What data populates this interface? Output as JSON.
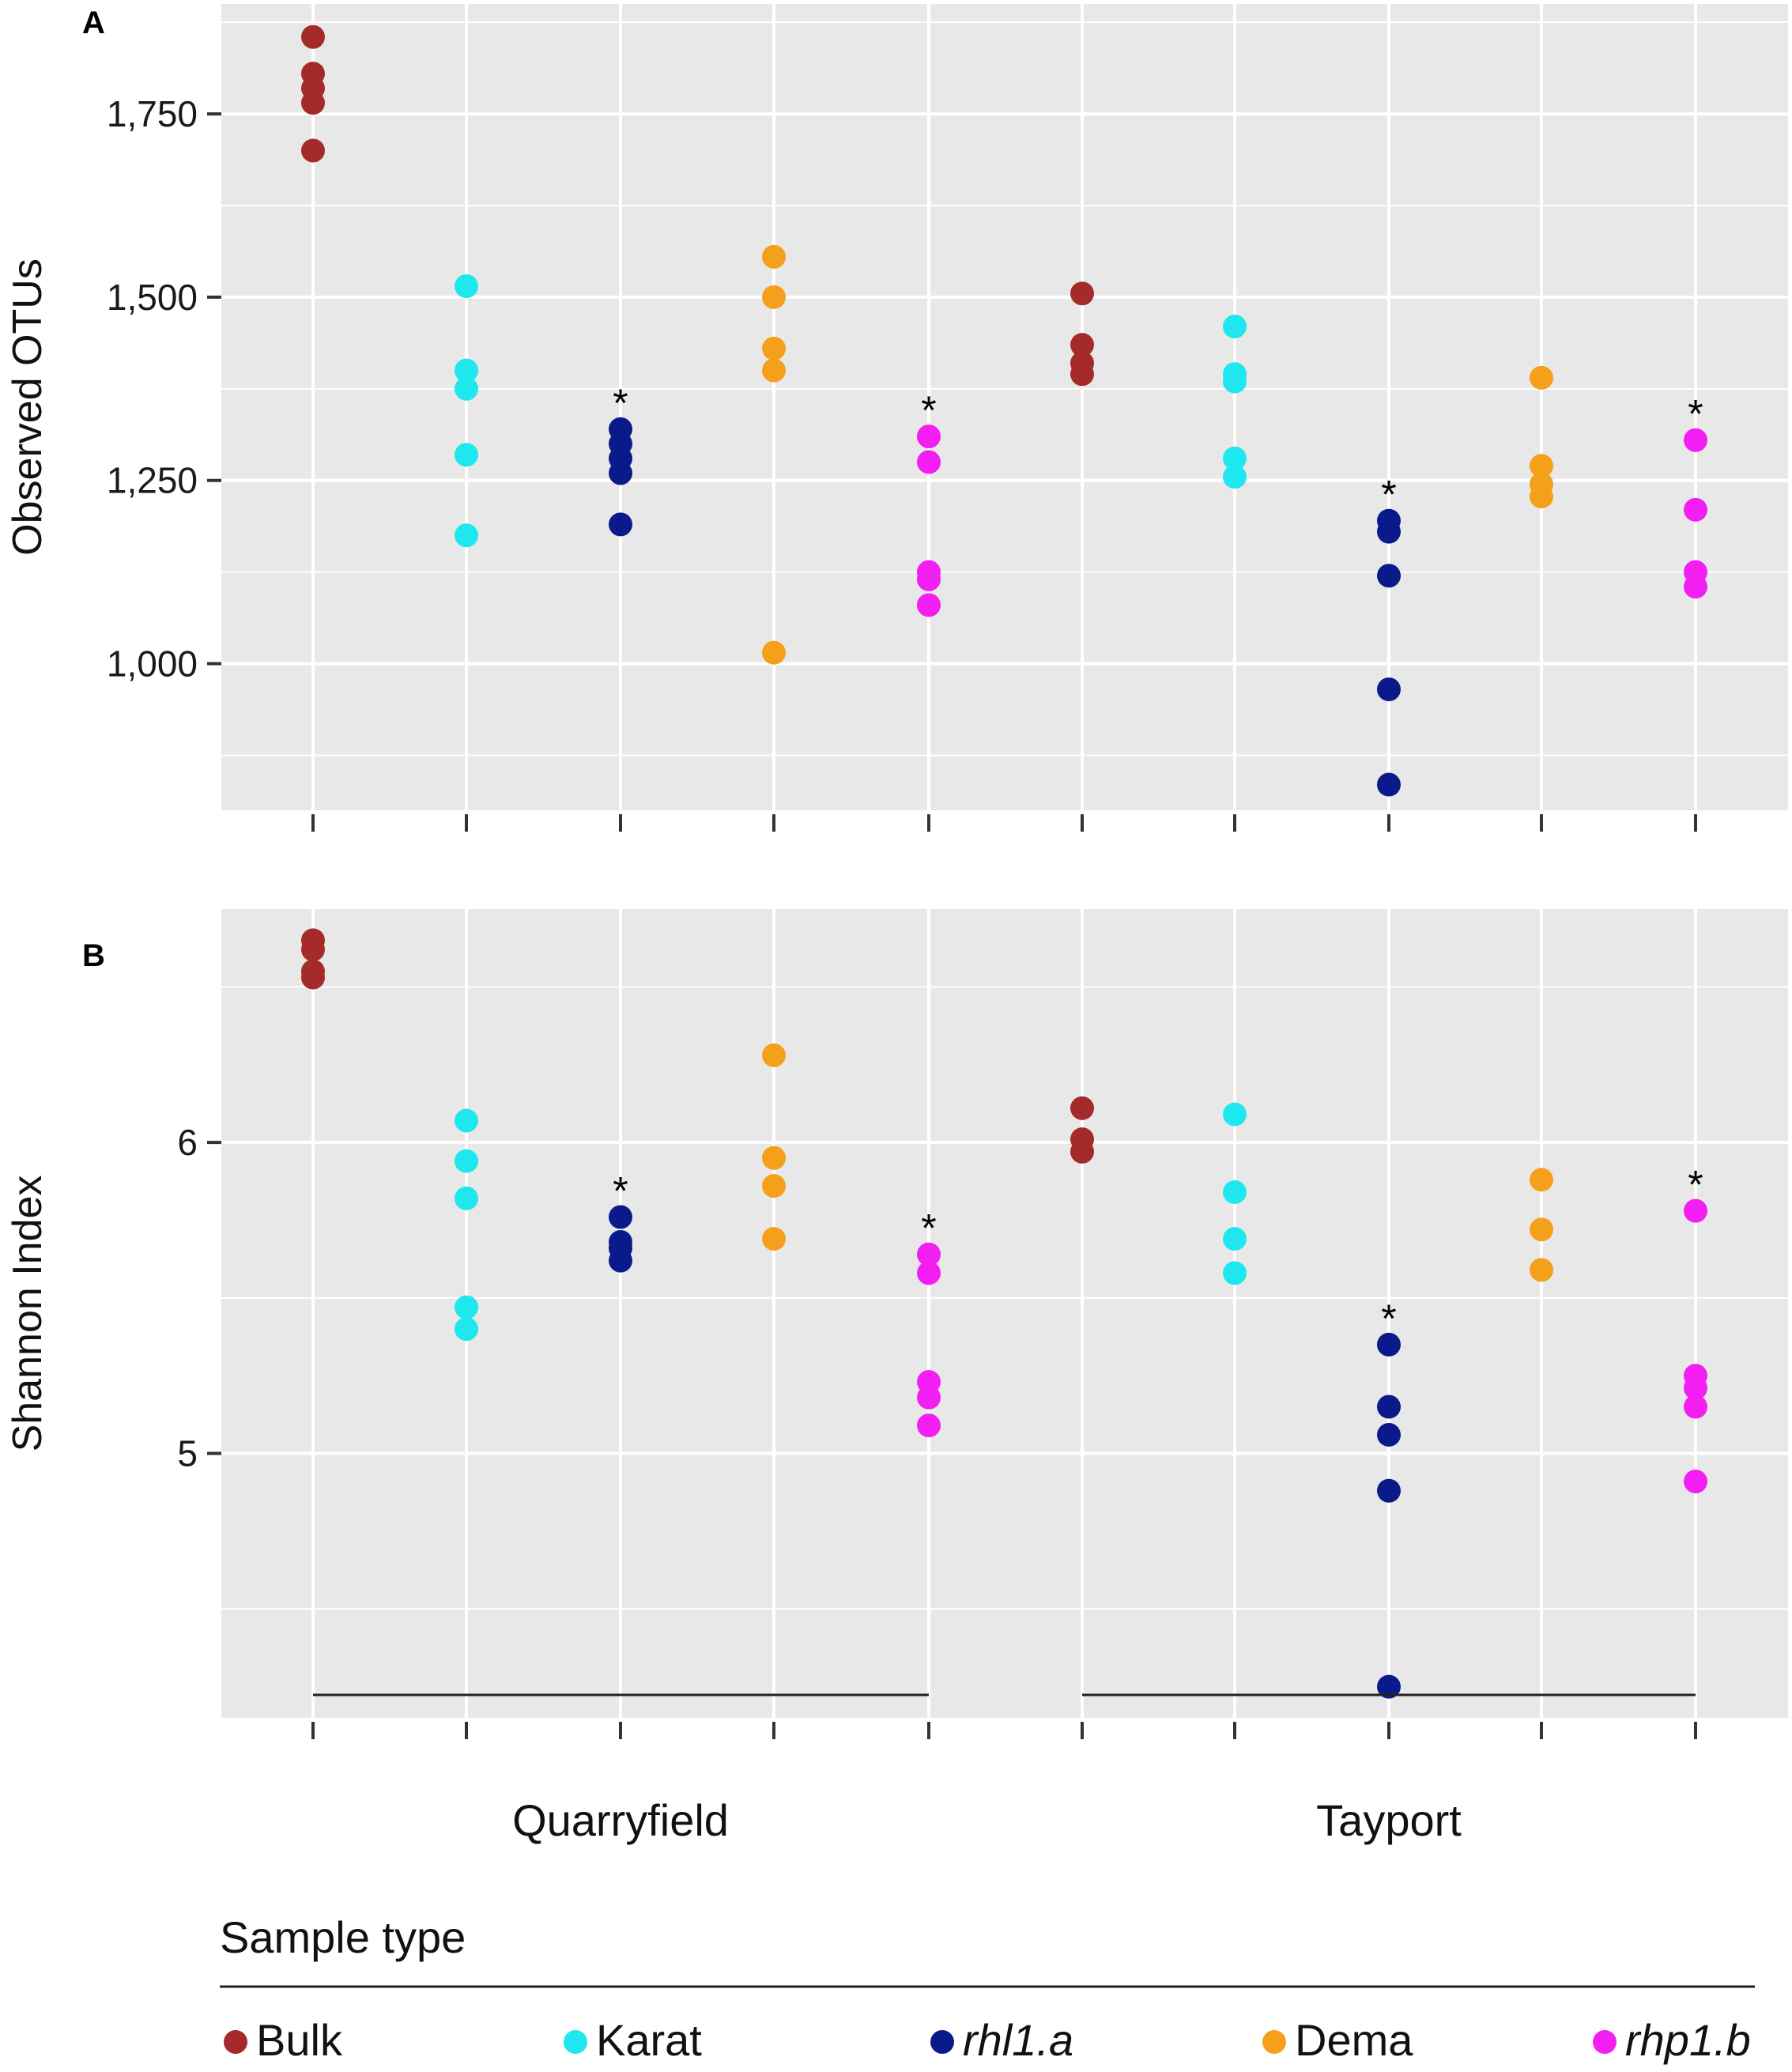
{
  "chart_data": [
    {
      "panel": "A",
      "type": "scatter",
      "ylabel": "Observed OTUs",
      "ylim": [
        800,
        1900
      ],
      "yticks": [
        1000,
        1250,
        1500,
        1750
      ],
      "ytick_labels": [
        "1,000",
        "1,250",
        "1,500",
        "1,750"
      ],
      "yminor": [
        875,
        1125,
        1375,
        1625,
        1875
      ],
      "grid": true,
      "significance_marker": "*",
      "series": [
        {
          "name": "Bulk",
          "site": "Quarryfield",
          "values": [
            1855,
            1805,
            1785,
            1765,
            1700
          ]
        },
        {
          "name": "Karat",
          "site": "Quarryfield",
          "values": [
            1515,
            1400,
            1375,
            1285,
            1175
          ]
        },
        {
          "name": "rhl1.a",
          "site": "Quarryfield",
          "values": [
            1320,
            1300,
            1280,
            1260,
            1190
          ],
          "significant": true
        },
        {
          "name": "Dema",
          "site": "Quarryfield",
          "values": [
            1555,
            1500,
            1430,
            1400,
            1015
          ]
        },
        {
          "name": "rhp1.b",
          "site": "Quarryfield",
          "values": [
            1310,
            1275,
            1125,
            1115,
            1080
          ],
          "significant": true
        },
        {
          "name": "Bulk",
          "site": "Tayport",
          "values": [
            1505,
            1435,
            1410,
            1395
          ]
        },
        {
          "name": "Karat",
          "site": "Tayport",
          "values": [
            1460,
            1395,
            1385,
            1280,
            1255
          ]
        },
        {
          "name": "rhl1.a",
          "site": "Tayport",
          "values": [
            1195,
            1180,
            1120,
            965,
            835
          ],
          "significant": true
        },
        {
          "name": "Dema",
          "site": "Tayport",
          "values": [
            1390,
            1270,
            1245,
            1228
          ]
        },
        {
          "name": "rhp1.b",
          "site": "Tayport",
          "values": [
            1305,
            1210,
            1125,
            1105
          ],
          "significant": true
        }
      ]
    },
    {
      "panel": "B",
      "type": "scatter",
      "ylabel": "Shannon Index",
      "ylim": [
        4.15,
        6.75
      ],
      "yticks": [
        5,
        6
      ],
      "ytick_labels": [
        "5",
        "6"
      ],
      "yminor": [
        4.5,
        5.5,
        6.5
      ],
      "grid": true,
      "significance_marker": "*",
      "series": [
        {
          "name": "Bulk",
          "site": "Quarryfield",
          "values": [
            6.65,
            6.62,
            6.55,
            6.53
          ]
        },
        {
          "name": "Karat",
          "site": "Quarryfield",
          "values": [
            6.07,
            5.94,
            5.82,
            5.47,
            5.4
          ]
        },
        {
          "name": "rhl1.a",
          "site": "Quarryfield",
          "values": [
            5.76,
            5.68,
            5.66,
            5.62
          ],
          "significant": true
        },
        {
          "name": "Dema",
          "site": "Quarryfield",
          "values": [
            6.28,
            5.95,
            5.86,
            5.69
          ]
        },
        {
          "name": "rhp1.b",
          "site": "Quarryfield",
          "values": [
            5.64,
            5.58,
            5.23,
            5.18,
            5.09
          ],
          "significant": true
        },
        {
          "name": "Bulk",
          "site": "Tayport",
          "values": [
            6.11,
            6.01,
            5.97
          ]
        },
        {
          "name": "Karat",
          "site": "Tayport",
          "values": [
            6.09,
            5.84,
            5.69,
            5.58
          ]
        },
        {
          "name": "rhl1.a",
          "site": "Tayport",
          "values": [
            5.35,
            5.15,
            5.06,
            4.88,
            4.25
          ],
          "significant": true
        },
        {
          "name": "Dema",
          "site": "Tayport",
          "values": [
            5.88,
            5.72,
            5.59
          ]
        },
        {
          "name": "rhp1.b",
          "site": "Tayport",
          "values": [
            5.78,
            5.25,
            5.21,
            5.15,
            4.91
          ],
          "significant": true
        }
      ]
    }
  ],
  "groups": [
    "Quarryfield",
    "Tayport"
  ],
  "legend": {
    "title": "Sample type",
    "entries": [
      {
        "label": "Bulk",
        "color": "#a52a2a",
        "italic": false
      },
      {
        "label": "Karat",
        "color": "#1ee8ee",
        "italic": false
      },
      {
        "label": "rhl1.a",
        "color": "#0b1a8a",
        "italic": true
      },
      {
        "label": "Dema",
        "color": "#f5a01a",
        "italic": false
      },
      {
        "label": "rhp1.b",
        "color": "#f21ef2",
        "italic": true
      }
    ]
  },
  "colors": {
    "Bulk": "#a52a2a",
    "Karat": "#1ee8ee",
    "rhl1.a": "#0b1a8a",
    "Dema": "#f5a01a",
    "rhp1.b": "#f21ef2",
    "panel_bg": "#e8e8e8",
    "grid": "#ffffff"
  }
}
